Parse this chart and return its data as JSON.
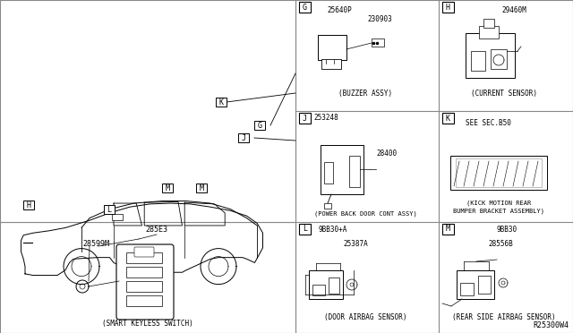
{
  "bg_color": "#ffffff",
  "line_color": "#000000",
  "grid_color": "#888888",
  "ref_code": "R25300W4",
  "panels": {
    "G": {
      "label": "G",
      "caption": "(BUZZER ASSY)",
      "parts": [
        "25640P",
        "230903"
      ]
    },
    "H": {
      "label": "H",
      "caption": "(CURRENT SENSOR)",
      "parts": [
        "29460M"
      ]
    },
    "J": {
      "label": "J",
      "caption": "(POWER BACK DOOR CONT ASSY)",
      "parts": [
        "253248",
        "28400"
      ]
    },
    "K": {
      "label": "K",
      "caption": "(KICK MOTION REAR\nBUMPER BRACKET ASSEMBLY)",
      "note": "SEE SEC.B50"
    },
    "L": {
      "label": "L",
      "caption": "(DOOR AIRBAG SENSOR)",
      "parts": [
        "9BB30+A",
        "25387A"
      ]
    },
    "M": {
      "label": "M",
      "caption": "(REAR SIDE AIRBAG SENSOR)",
      "parts": [
        "9BB30",
        "28556B"
      ]
    }
  },
  "smart_key": {
    "label": "285E3",
    "sub": "28599M",
    "caption": "(SMART KEYLESS SWITCH)"
  }
}
